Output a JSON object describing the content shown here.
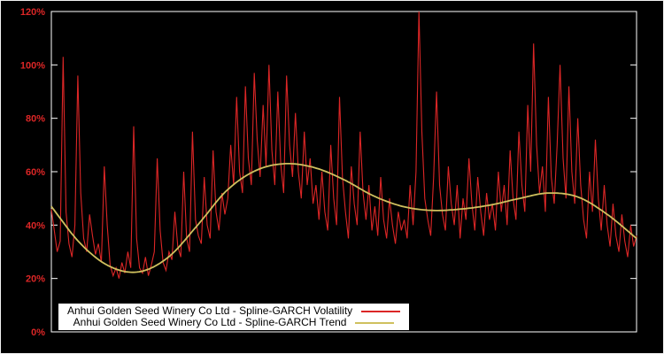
{
  "chart_data": {
    "type": "line",
    "title": "",
    "xlabel": "",
    "ylabel": "",
    "background_color": "#000000",
    "border_color": "#ffffff",
    "axis_label_color": "#dc2626",
    "grid": false,
    "legend_position": "bottom-left-inside",
    "y_axis": {
      "min": 0,
      "max": 120,
      "ticks": [
        "0%",
        "20%",
        "40%",
        "60%",
        "80%",
        "100%",
        "120%"
      ],
      "tick_values": [
        0,
        20,
        40,
        60,
        80,
        100,
        120
      ]
    },
    "x_axis": {
      "label": "",
      "ticks": []
    },
    "series": [
      {
        "name": "Anhui Golden Seed Winery Co Ltd - Spline-GARCH Volatility",
        "color": "#dc2626",
        "style": "spiky-line",
        "unit": "%",
        "values": [
          46,
          38,
          30,
          34,
          103,
          45,
          33,
          28,
          40,
          96,
          52,
          35,
          30,
          44,
          36,
          29,
          33,
          26,
          62,
          40,
          25,
          21,
          24,
          20,
          26,
          22,
          30,
          24,
          77,
          35,
          24,
          22,
          28,
          21,
          25,
          30,
          65,
          38,
          26,
          23,
          30,
          27,
          45,
          32,
          28,
          60,
          35,
          30,
          75,
          42,
          36,
          33,
          58,
          40,
          35,
          68,
          45,
          38,
          52,
          44,
          50,
          70,
          55,
          88,
          60,
          52,
          92,
          65,
          55,
          97,
          72,
          58,
          85,
          62,
          100,
          68,
          55,
          90,
          63,
          52,
          96,
          70,
          58,
          82,
          60,
          50,
          75,
          55,
          65,
          48,
          55,
          42,
          60,
          45,
          38,
          70,
          50,
          40,
          88,
          58,
          45,
          35,
          62,
          48,
          40,
          75,
          52,
          42,
          55,
          38,
          47,
          36,
          58,
          42,
          35,
          50,
          40,
          33,
          45,
          38,
          42,
          35,
          55,
          40,
          60,
          120,
          75,
          50,
          42,
          36,
          58,
          90,
          55,
          44,
          38,
          62,
          48,
          40,
          55,
          35,
          50,
          42,
          65,
          48,
          38,
          58,
          45,
          36,
          52,
          42,
          48,
          38,
          60,
          45,
          55,
          40,
          68,
          50,
          42,
          75,
          55,
          45,
          85,
          60,
          108,
          70,
          52,
          62,
          45,
          88,
          58,
          48,
          70,
          100,
          65,
          50,
          92,
          60,
          48,
          80,
          55,
          42,
          35,
          60,
          45,
          72,
          50,
          38,
          55,
          40,
          32,
          48,
          36,
          30,
          44,
          34,
          28,
          40,
          32,
          36
        ]
      },
      {
        "name": "Anhui Golden Seed Winery Co Ltd - Spline-GARCH Trend",
        "color": "#cfc05e",
        "style": "smooth-line",
        "unit": "%",
        "values": [
          47,
          33,
          24.5,
          22.5,
          28,
          40,
          53,
          60.5,
          63,
          61.5,
          57,
          51,
          47,
          45.5,
          46,
          47.5,
          50,
          52,
          50.5,
          44,
          35
        ]
      }
    ]
  }
}
